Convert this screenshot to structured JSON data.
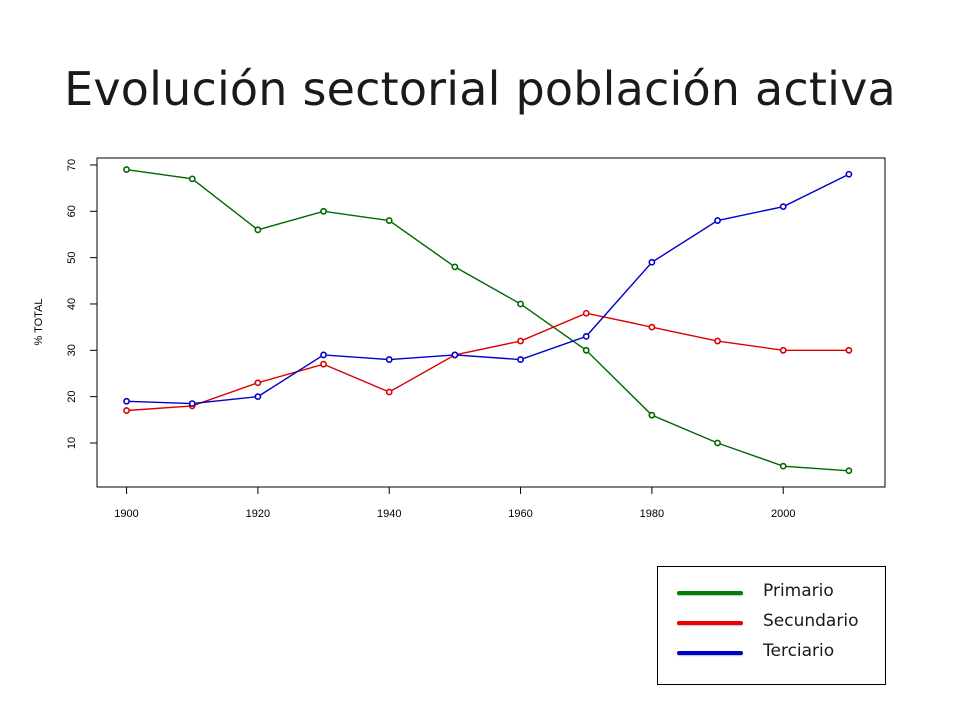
{
  "slide": {
    "title": "Evolución sectorial población activa"
  },
  "chart_data": {
    "type": "line",
    "title": "",
    "xlabel": "",
    "ylabel": "% TOTAL",
    "x": [
      1900,
      1910,
      1920,
      1930,
      1940,
      1950,
      1960,
      1970,
      1980,
      1990,
      2000,
      2010
    ],
    "xlim": [
      1895.5,
      2015.5
    ],
    "ylim": [
      0.5,
      71.5
    ],
    "xticks": [
      1900,
      1920,
      1940,
      1960,
      1980,
      2000
    ],
    "yticks": [
      10,
      20,
      30,
      40,
      50,
      60,
      70
    ],
    "grid": false,
    "series": [
      {
        "name": "Primario",
        "color": "#006600",
        "values": [
          69,
          67,
          56,
          60,
          58,
          48,
          40,
          30,
          16,
          10,
          5,
          4
        ]
      },
      {
        "name": "Secundario",
        "color": "#dd0000",
        "values": [
          17,
          18,
          23,
          27,
          21,
          29,
          32,
          38,
          35,
          32,
          30,
          30
        ]
      },
      {
        "name": "Terciario",
        "color": "#0000cc",
        "values": [
          19,
          18.5,
          20,
          29,
          28,
          29,
          28,
          33,
          49,
          58,
          61,
          68
        ]
      }
    ],
    "legend": {
      "position": "bottom-right",
      "colors": [
        "#008000",
        "#ee0000",
        "#0000cc"
      ]
    }
  }
}
